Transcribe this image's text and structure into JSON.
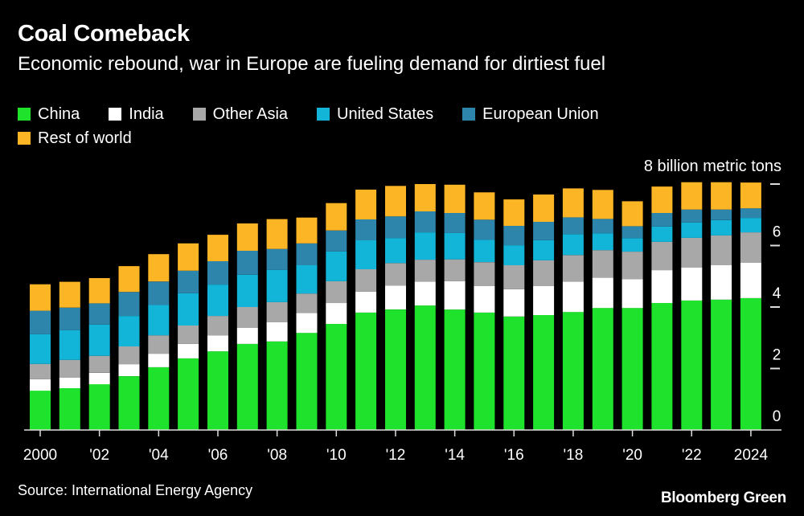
{
  "header": {
    "title": "Coal Comeback",
    "subtitle": "Economic rebound, war in Europe are fueling demand for dirtiest fuel"
  },
  "footer": {
    "source": "Source: International Energy Agency",
    "brand": "Bloomberg Green"
  },
  "chart_data": {
    "type": "bar",
    "stacked": true,
    "title": "Coal Comeback",
    "subtitle": "Economic rebound, war in Europe are fueling demand for dirtiest fuel",
    "xlabel": "",
    "ylabel": "8 billion metric tons",
    "ylim": [
      0,
      8
    ],
    "yticks": [
      0,
      2,
      4,
      6,
      8
    ],
    "ytick_labels": [
      "0",
      "2",
      "4",
      "6",
      "8 billion metric tons"
    ],
    "legend_position": "top-left",
    "categories": [
      "2000",
      "2001",
      "2002",
      "2003",
      "2004",
      "2005",
      "2006",
      "2007",
      "2008",
      "2009",
      "2010",
      "2011",
      "2012",
      "2013",
      "2014",
      "2015",
      "2016",
      "2017",
      "2018",
      "2019",
      "2020",
      "2021",
      "2022",
      "2023",
      "2024"
    ],
    "xtick_labels": [
      {
        "index": 0,
        "label": "2000"
      },
      {
        "index": 2,
        "label": "'02"
      },
      {
        "index": 4,
        "label": "'04"
      },
      {
        "index": 6,
        "label": "'06"
      },
      {
        "index": 8,
        "label": "'08"
      },
      {
        "index": 10,
        "label": "'10"
      },
      {
        "index": 12,
        "label": "'12"
      },
      {
        "index": 14,
        "label": "'14"
      },
      {
        "index": 16,
        "label": "'16"
      },
      {
        "index": 18,
        "label": "'18"
      },
      {
        "index": 20,
        "label": "'20"
      },
      {
        "index": 22,
        "label": "'22"
      },
      {
        "index": 24,
        "label": "2024"
      }
    ],
    "series": [
      {
        "name": "China",
        "color": "#1ee22b",
        "values": [
          1.28,
          1.36,
          1.49,
          1.75,
          2.04,
          2.33,
          2.56,
          2.8,
          2.88,
          3.16,
          3.45,
          3.82,
          3.92,
          4.05,
          3.92,
          3.82,
          3.69,
          3.74,
          3.84,
          3.97,
          3.97,
          4.13,
          4.21,
          4.24,
          4.29
        ]
      },
      {
        "name": "India",
        "color": "#ffffff",
        "values": [
          0.37,
          0.34,
          0.37,
          0.39,
          0.44,
          0.47,
          0.52,
          0.52,
          0.63,
          0.65,
          0.68,
          0.68,
          0.78,
          0.78,
          0.92,
          0.86,
          0.89,
          0.94,
          0.99,
          0.99,
          0.94,
          1.07,
          1.07,
          1.12,
          1.15
        ]
      },
      {
        "name": "Other Asia",
        "color": "#a8a8a8",
        "values": [
          0.5,
          0.58,
          0.55,
          0.58,
          0.6,
          0.6,
          0.63,
          0.68,
          0.65,
          0.63,
          0.71,
          0.73,
          0.73,
          0.71,
          0.71,
          0.78,
          0.78,
          0.84,
          0.86,
          0.89,
          0.89,
          0.92,
          0.97,
          0.97,
          0.99
        ]
      },
      {
        "name": "United States",
        "color": "#12b4d8",
        "values": [
          0.97,
          0.97,
          1.02,
          0.99,
          0.99,
          1.05,
          1.02,
          1.05,
          1.05,
          0.92,
          0.97,
          0.94,
          0.81,
          0.89,
          0.86,
          0.73,
          0.65,
          0.65,
          0.68,
          0.55,
          0.44,
          0.5,
          0.5,
          0.5,
          0.47
        ]
      },
      {
        "name": "European Union",
        "color": "#2d85ac",
        "values": [
          0.76,
          0.73,
          0.69,
          0.78,
          0.76,
          0.73,
          0.76,
          0.78,
          0.68,
          0.71,
          0.68,
          0.68,
          0.71,
          0.68,
          0.65,
          0.65,
          0.63,
          0.6,
          0.55,
          0.47,
          0.39,
          0.44,
          0.42,
          0.34,
          0.31
        ]
      },
      {
        "name": "Rest of world",
        "color": "#fcb524",
        "values": [
          0.86,
          0.84,
          0.82,
          0.84,
          0.89,
          0.89,
          0.86,
          0.89,
          0.97,
          0.84,
          0.89,
          0.97,
          0.99,
          0.89,
          0.92,
          0.89,
          0.86,
          0.89,
          0.94,
          0.94,
          0.81,
          0.86,
          0.89,
          0.89,
          0.84
        ]
      }
    ]
  }
}
